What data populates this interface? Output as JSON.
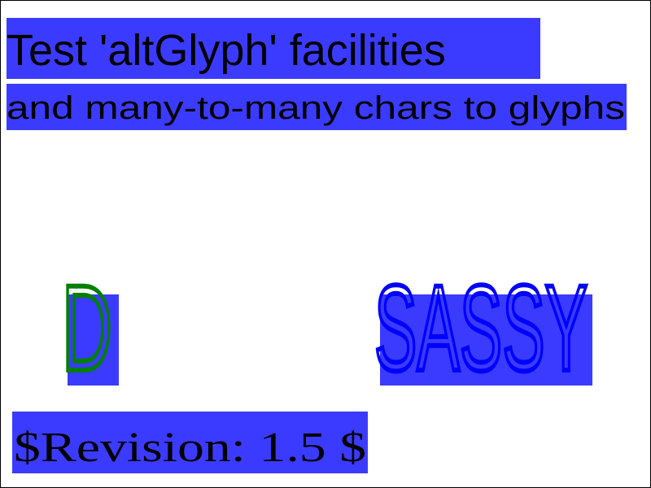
{
  "header": {
    "title": "Test 'altGlyph' facilities",
    "subtitle": "and many-to-many chars to glyphs"
  },
  "glyph_samples": [
    "D",
    "SASSY"
  ],
  "footer": {
    "revision": "$Revision: 1.5 $"
  }
}
